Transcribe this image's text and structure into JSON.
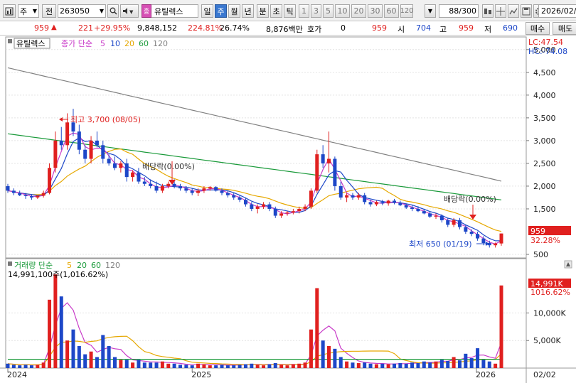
{
  "toolbar": {
    "market_label": "주",
    "period_label": "전",
    "code": "263050",
    "stock_name": "유틸렉스",
    "periods": [
      "일",
      "주",
      "월",
      "년",
      "분",
      "초",
      "틱"
    ],
    "active_period": "주",
    "intervals": [
      "1",
      "3",
      "5",
      "10",
      "20",
      "30",
      "60",
      "120"
    ],
    "count": "88",
    "count_total": "/300",
    "date": "2026/02/"
  },
  "quote": {
    "price": "959",
    "change": "221",
    "change_rate": "+29.95%",
    "volume": "9,848,152",
    "volume_ratio": "224.81%",
    "turnover": "26.74%",
    "amount": "8,876백만",
    "hoga_label": "호가",
    "hoga_value": "0",
    "bid_price": "959",
    "open_label": "시",
    "open": "704",
    "high_label": "고",
    "high": "959",
    "low_label": "저",
    "low": "690",
    "buy_label": "매수",
    "sell_label": "매도"
  },
  "legend": {
    "stock": "유틸렉스",
    "price_label": "종가 단순",
    "ma": [
      "5",
      "10",
      "20",
      "60",
      "120"
    ],
    "volume_label": "거래량 단순",
    "vol_ma": [
      "5",
      "20",
      "60",
      "120"
    ],
    "volume_value": "14,991,100주(1,016.62%)"
  },
  "right_info": {
    "lc": "LC:47.54",
    "hc": "HC:-74.08"
  },
  "annotations": {
    "high": "최고 3,700 (08/05)",
    "low": "최저 650 (01/19)",
    "div1": "배당락(0.00%)",
    "div2": "배당락(0.00%)"
  },
  "badges": {
    "price": "959",
    "price_pct": "32.28%",
    "volume": "14,991K",
    "volume_pct": "1016.62%"
  },
  "colors": {
    "up": "#e0201f",
    "down": "#1d47c8",
    "ma5": "#c83ac8",
    "ma10": "#1d47c8",
    "ma20": "#e6a800",
    "ma60": "#1a9a3a",
    "ma120": "#808080"
  },
  "chart_data": {
    "type": "candlestick",
    "price_axis": {
      "ticks": [
        5000,
        4500,
        4000,
        3500,
        3000,
        2500,
        2000,
        1500,
        500
      ],
      "range": [
        500,
        5200
      ]
    },
    "volume_axis": {
      "ticks": [
        "10,000K",
        "5,000K"
      ]
    },
    "x_labels": [
      "2024",
      "2025",
      "2026"
    ],
    "x_right_label": "02/02",
    "ohlc": [
      [
        2000,
        2050,
        1850,
        1900
      ],
      [
        1900,
        1950,
        1800,
        1850
      ],
      [
        1850,
        1900,
        1780,
        1800
      ],
      [
        1800,
        1850,
        1720,
        1780
      ],
      [
        1780,
        1820,
        1700,
        1750
      ],
      [
        1750,
        1800,
        1720,
        1790
      ],
      [
        1790,
        1900,
        1750,
        1850
      ],
      [
        1850,
        2500,
        1820,
        2400
      ],
      [
        2400,
        3200,
        2300,
        3000
      ],
      [
        3000,
        3300,
        2800,
        2900
      ],
      [
        2900,
        3600,
        2800,
        3400
      ],
      [
        3400,
        3700,
        3100,
        3200
      ],
      [
        3200,
        3350,
        2700,
        2800
      ],
      [
        2800,
        2900,
        2500,
        2600
      ],
      [
        2600,
        3100,
        2500,
        3000
      ],
      [
        3000,
        3200,
        2850,
        2900
      ],
      [
        2900,
        3000,
        2500,
        2600
      ],
      [
        2600,
        2700,
        2450,
        2500
      ],
      [
        2500,
        2650,
        2350,
        2400
      ],
      [
        2400,
        2550,
        2300,
        2500
      ],
      [
        2500,
        2600,
        2100,
        2200
      ],
      [
        2200,
        2350,
        2100,
        2300
      ],
      [
        2300,
        2400,
        2050,
        2100
      ],
      [
        2100,
        2200,
        2000,
        2050
      ],
      [
        2050,
        2150,
        1950,
        2000
      ],
      [
        2000,
        2100,
        1850,
        1900
      ],
      [
        1900,
        2050,
        1850,
        2000
      ],
      [
        2000,
        2100,
        1950,
        2050
      ],
      [
        2050,
        2150,
        1950,
        2000
      ],
      [
        2000,
        2050,
        1900,
        1950
      ],
      [
        1950,
        2000,
        1850,
        1900
      ],
      [
        1900,
        1950,
        1800,
        1850
      ],
      [
        1850,
        1950,
        1780,
        1900
      ],
      [
        1900,
        2000,
        1850,
        1950
      ],
      [
        1950,
        2000,
        1900,
        1980
      ],
      [
        1980,
        2000,
        1880,
        1900
      ],
      [
        1900,
        1950,
        1800,
        1850
      ],
      [
        1850,
        1900,
        1750,
        1800
      ],
      [
        1800,
        1850,
        1700,
        1750
      ],
      [
        1750,
        1800,
        1650,
        1700
      ],
      [
        1700,
        1750,
        1550,
        1600
      ],
      [
        1600,
        1650,
        1450,
        1500
      ],
      [
        1500,
        1600,
        1400,
        1550
      ],
      [
        1550,
        1650,
        1500,
        1600
      ],
      [
        1600,
        1650,
        1450,
        1500
      ],
      [
        1500,
        1550,
        1300,
        1350
      ],
      [
        1350,
        1450,
        1300,
        1400
      ],
      [
        1400,
        1450,
        1350,
        1420
      ],
      [
        1420,
        1500,
        1380,
        1450
      ],
      [
        1450,
        1550,
        1400,
        1500
      ],
      [
        1500,
        1600,
        1450,
        1550
      ],
      [
        1550,
        1950,
        1500,
        1900
      ],
      [
        1900,
        2800,
        1850,
        2700
      ],
      [
        2700,
        2900,
        2400,
        2500
      ],
      [
        2500,
        3200,
        2300,
        2600
      ],
      [
        2600,
        2650,
        1900,
        2000
      ],
      [
        2000,
        2100,
        1700,
        1750
      ],
      [
        1750,
        1850,
        1650,
        1800
      ],
      [
        1800,
        1850,
        1700,
        1750
      ],
      [
        1750,
        1850,
        1700,
        1800
      ],
      [
        1800,
        1850,
        1600,
        1650
      ],
      [
        1650,
        1700,
        1550,
        1600
      ],
      [
        1600,
        1680,
        1560,
        1650
      ],
      [
        1650,
        1700,
        1580,
        1620
      ],
      [
        1620,
        1700,
        1570,
        1680
      ],
      [
        1680,
        1720,
        1600,
        1640
      ],
      [
        1640,
        1680,
        1560,
        1580
      ],
      [
        1580,
        1620,
        1500,
        1530
      ],
      [
        1530,
        1580,
        1450,
        1500
      ],
      [
        1500,
        1560,
        1430,
        1450
      ],
      [
        1450,
        1480,
        1380,
        1400
      ],
      [
        1400,
        1450,
        1300,
        1330
      ],
      [
        1330,
        1400,
        1280,
        1350
      ],
      [
        1350,
        1380,
        1200,
        1250
      ],
      [
        1250,
        1300,
        1100,
        1150
      ],
      [
        1150,
        1300,
        1100,
        1250
      ],
      [
        1250,
        1300,
        1050,
        1100
      ],
      [
        1100,
        1150,
        950,
        1000
      ],
      [
        1000,
        1050,
        900,
        950
      ],
      [
        950,
        1000,
        800,
        850
      ],
      [
        850,
        900,
        700,
        750
      ],
      [
        750,
        800,
        650,
        700
      ],
      [
        700,
        760,
        650,
        740
      ],
      [
        740,
        960,
        690,
        959
      ]
    ],
    "volume": [
      0.8,
      0.6,
      0.5,
      0.6,
      0.5,
      0.6,
      1.0,
      12.4,
      17.0,
      13.0,
      5.0,
      7.0,
      4.0,
      2.5,
      3.0,
      2.0,
      6.0,
      4.0,
      2.0,
      1.5,
      1.5,
      1.0,
      1.5,
      1.0,
      1.0,
      1.0,
      1.2,
      0.8,
      0.8,
      0.6,
      0.6,
      0.5,
      0.8,
      0.7,
      0.5,
      0.5,
      0.6,
      0.5,
      0.5,
      0.6,
      0.7,
      0.8,
      0.6,
      0.5,
      0.7,
      0.9,
      0.6,
      0.5,
      0.7,
      0.8,
      1.0,
      7.0,
      14.5,
      5.0,
      4.0,
      3.5,
      2.0,
      1.2,
      1.0,
      0.9,
      1.0,
      0.8,
      0.7,
      0.8,
      0.7,
      0.8,
      0.9,
      0.8,
      1.0,
      0.9,
      1.2,
      1.0,
      1.2,
      1.5,
      1.3,
      2.0,
      1.4,
      2.6,
      1.8,
      3.6,
      1.5,
      1.2,
      0.8,
      14.99
    ]
  }
}
